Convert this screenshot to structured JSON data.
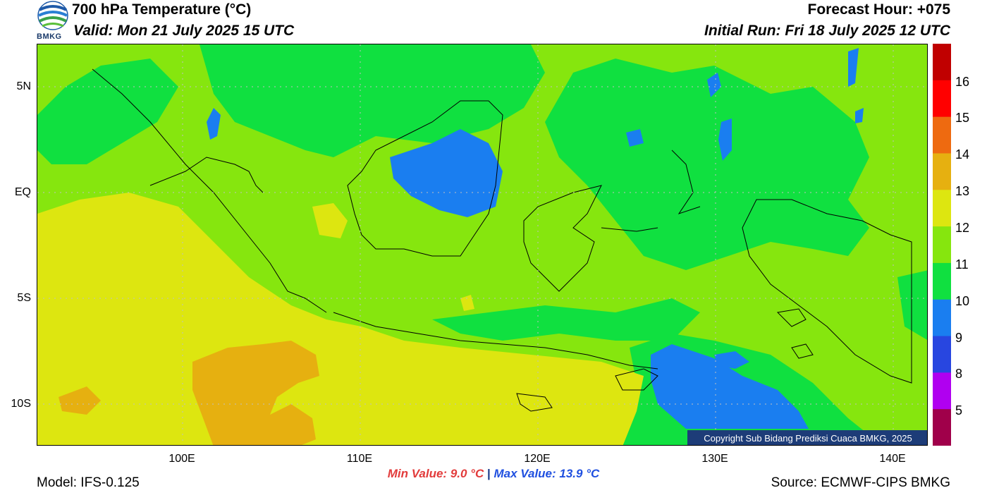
{
  "header": {
    "title": "700 hPa Temperature (°C)",
    "valid": "Valid: Mon 21 July 2025 15 UTC",
    "forecast_hour": "Forecast Hour: +075",
    "initial_run": "Initial Run: Fri 18 July 2025 12 UTC",
    "logo_text": "BMKG"
  },
  "axes": {
    "lat_labels": [
      "5N",
      "EQ",
      "5S",
      "10S"
    ],
    "lon_labels": [
      "100E",
      "110E",
      "120E",
      "130E",
      "140E"
    ]
  },
  "colorbar": {
    "labels": [
      "16",
      "15",
      "14",
      "13",
      "12",
      "11",
      "10",
      "9",
      "8",
      "5"
    ],
    "colors": [
      "#c00000",
      "#ff0000",
      "#ee6a10",
      "#e6b010",
      "#dde610",
      "#86e60e",
      "#10e040",
      "#1a7ef0",
      "#2846e0",
      "#b000f0",
      "#a0004a"
    ]
  },
  "footer": {
    "model": "Model: IFS-0.125",
    "source": "Source: ECMWF-CIPS BMKG",
    "min_value": "Min Value: 9.0 °C",
    "separator": "|",
    "max_value": "Max Value: 13.9 °C",
    "copyright": "Copyright Sub Bidang Prediksi Cuaca BMKG, 2025"
  }
}
